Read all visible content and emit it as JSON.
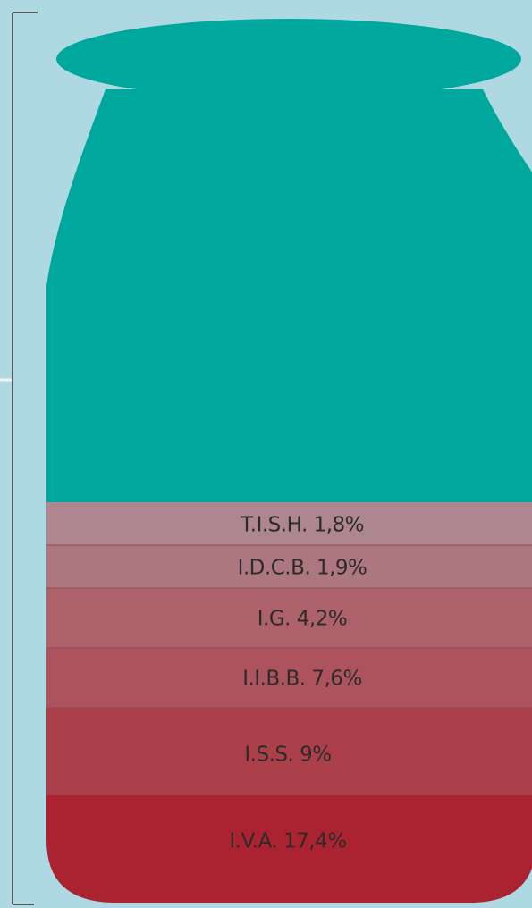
{
  "segments": [
    {
      "label": "T.I.S.H. 1,8%"
    },
    {
      "label": "I.D.C.B. 1,9%"
    },
    {
      "label": "I.G. 4,2%"
    },
    {
      "label": "I.I.B.B. 7,6%"
    },
    {
      "label": "I.S.S. 9%"
    },
    {
      "label": "I.V.A. 17,4%"
    }
  ]
}
